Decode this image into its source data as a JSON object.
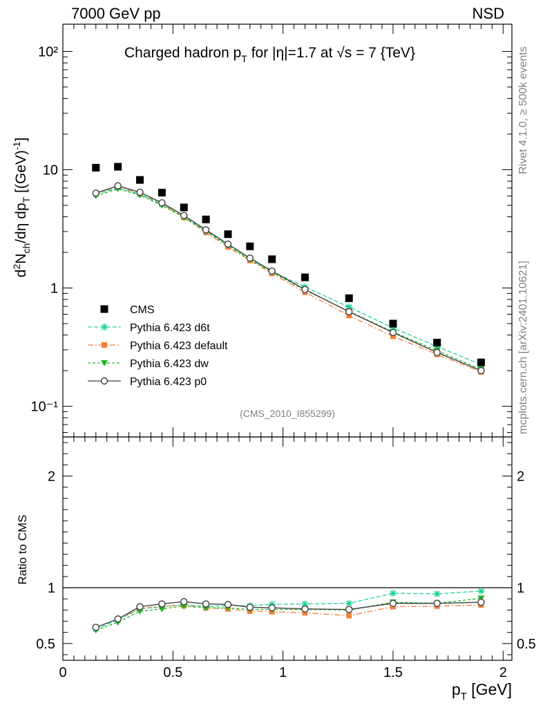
{
  "header": {
    "left_label": "7000 GeV pp",
    "right_label": "NSD"
  },
  "side_labels": {
    "rivet": "Rivet 4.1.0, ≥ 500k events",
    "mcplots": "mcplots.cern.ch [arXiv:2401.10621]"
  },
  "analysis_tag": "(CMS_2010_I855299)",
  "colors": {
    "CMS": "#000000",
    "d6t": "#1fd19a",
    "default": "#f4813a",
    "dw": "#22b322",
    "p0": "#404040"
  },
  "chart_data": [
    {
      "type": "line",
      "panel": "main",
      "title": "Charged hadron p_T for |η|=1.7 at √s = 7 {TeV}",
      "title_parts": {
        "a": "Charged hadron p",
        "a_sub": "T",
        "b": " for |η|=1.7 at ",
        "sqrt": "√",
        "c": "s = 7 {TeV}"
      },
      "xlabel": "p_T [GeV]",
      "ylabel": "d²N_ch/dη dp_T [(GeV)⁻¹]",
      "yscale": "log",
      "xlim": [
        0,
        2.04
      ],
      "ylim": [
        0.055,
        170
      ],
      "ytick_labels": [
        "10⁻¹",
        "1",
        "10",
        "10²"
      ],
      "legend_position": "center-left",
      "x": [
        0.15,
        0.25,
        0.35,
        0.45,
        0.55,
        0.65,
        0.75,
        0.85,
        0.95,
        1.1,
        1.3,
        1.5,
        1.7,
        1.9
      ],
      "series": [
        {
          "name": "CMS",
          "key": "CMS",
          "marker": "square",
          "values": [
            10.4,
            10.6,
            8.2,
            6.4,
            4.8,
            3.8,
            2.85,
            2.25,
            1.75,
            1.23,
            0.82,
            0.5,
            0.345,
            0.235
          ]
        },
        {
          "name": "Pythia 6.423 d6t",
          "key": "d6t",
          "marker": "star",
          "dash": "6,3",
          "values": [
            6.2,
            7.0,
            6.2,
            5.1,
            4.0,
            3.05,
            2.33,
            1.77,
            1.38,
            1.02,
            0.69,
            0.46,
            0.32,
            0.225
          ]
        },
        {
          "name": "Pythia 6.423 default",
          "key": "default",
          "marker": "square-small",
          "dash": "8,3,2,3",
          "values": [
            6.3,
            7.2,
            6.3,
            5.2,
            3.95,
            2.95,
            2.22,
            1.71,
            1.33,
            0.92,
            0.585,
            0.39,
            0.275,
            0.195
          ]
        },
        {
          "name": "Pythia 6.423 dw",
          "key": "dw",
          "marker": "triangle-down",
          "dash": "4,3",
          "values": [
            6.0,
            6.9,
            6.1,
            5.0,
            3.95,
            3.0,
            2.28,
            1.74,
            1.36,
            0.96,
            0.635,
            0.425,
            0.295,
            0.205
          ]
        },
        {
          "name": "Pythia 6.423 p0",
          "key": "p0",
          "marker": "circle-open",
          "dash": "",
          "values": [
            6.35,
            7.3,
            6.45,
            5.25,
            4.1,
            3.1,
            2.35,
            1.79,
            1.39,
            0.97,
            0.63,
            0.42,
            0.285,
            0.2
          ]
        }
      ]
    },
    {
      "type": "line",
      "panel": "ratio",
      "ylabel": "Ratio to CMS",
      "xlabel": "p_T [GeV]",
      "xlim": [
        0,
        2.04
      ],
      "ylim": [
        0.35,
        2.35
      ],
      "reference_line": 1.0,
      "ytick_labels": [
        "0.5",
        "1",
        "2"
      ],
      "xtick_labels": [
        "0",
        "0.5",
        "1",
        "1.5",
        "2"
      ],
      "x": [
        0.15,
        0.25,
        0.35,
        0.45,
        0.55,
        0.65,
        0.75,
        0.85,
        0.95,
        1.1,
        1.3,
        1.5,
        1.7,
        1.9
      ],
      "series": [
        {
          "name": "Pythia 6.423 d6t",
          "key": "d6t",
          "marker": "star",
          "dash": "6,3",
          "values": [
            0.63,
            0.71,
            0.81,
            0.83,
            0.85,
            0.83,
            0.84,
            0.84,
            0.85,
            0.855,
            0.86,
            0.95,
            0.945,
            0.97
          ]
        },
        {
          "name": "Pythia 6.423 default",
          "key": "default",
          "marker": "square-small",
          "dash": "8,3,2,3",
          "values": [
            0.645,
            0.72,
            0.815,
            0.835,
            0.84,
            0.82,
            0.81,
            0.79,
            0.785,
            0.775,
            0.75,
            0.83,
            0.835,
            0.845
          ]
        },
        {
          "name": "Pythia 6.423 dw",
          "key": "dw",
          "marker": "triangle-down",
          "dash": "4,3",
          "values": [
            0.62,
            0.69,
            0.79,
            0.81,
            0.835,
            0.82,
            0.82,
            0.805,
            0.805,
            0.805,
            0.8,
            0.87,
            0.86,
            0.905
          ]
        },
        {
          "name": "Pythia 6.423 p0",
          "key": "p0",
          "marker": "circle-open",
          "dash": "",
          "values": [
            0.645,
            0.72,
            0.83,
            0.855,
            0.875,
            0.855,
            0.85,
            0.825,
            0.82,
            0.81,
            0.805,
            0.86,
            0.86,
            0.87
          ]
        }
      ]
    }
  ]
}
